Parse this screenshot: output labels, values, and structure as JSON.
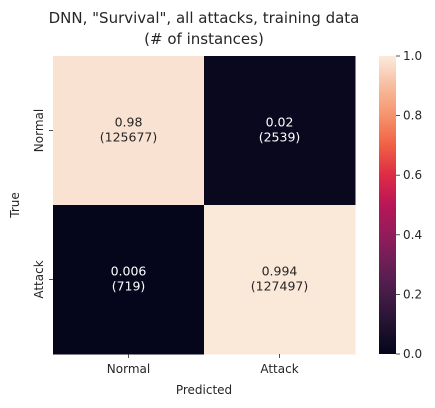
{
  "chart_data": {
    "type": "heatmap",
    "title_lines": [
      "DNN, \"Survival\", all attacks, training data",
      "(# of instances)"
    ],
    "xlabel": "Predicted",
    "ylabel": "True",
    "x_categories": [
      "Normal",
      "Attack"
    ],
    "y_categories": [
      "Normal",
      "Attack"
    ],
    "values": [
      [
        0.98,
        0.02
      ],
      [
        0.006,
        0.994
      ]
    ],
    "value_labels": [
      [
        "0.98",
        "0.02"
      ],
      [
        "0.006",
        "0.994"
      ]
    ],
    "counts": [
      [
        "(125677)",
        "(2539)"
      ],
      [
        "(719)",
        "(127497)"
      ]
    ],
    "colorbar": {
      "range": [
        0.0,
        1.0
      ],
      "ticks": [
        "0.0",
        "0.2",
        "0.4",
        "0.6",
        "0.8",
        "1.0"
      ],
      "colormap": "rocket",
      "low_color": "#03051a",
      "high_color": "#faebdd"
    }
  }
}
